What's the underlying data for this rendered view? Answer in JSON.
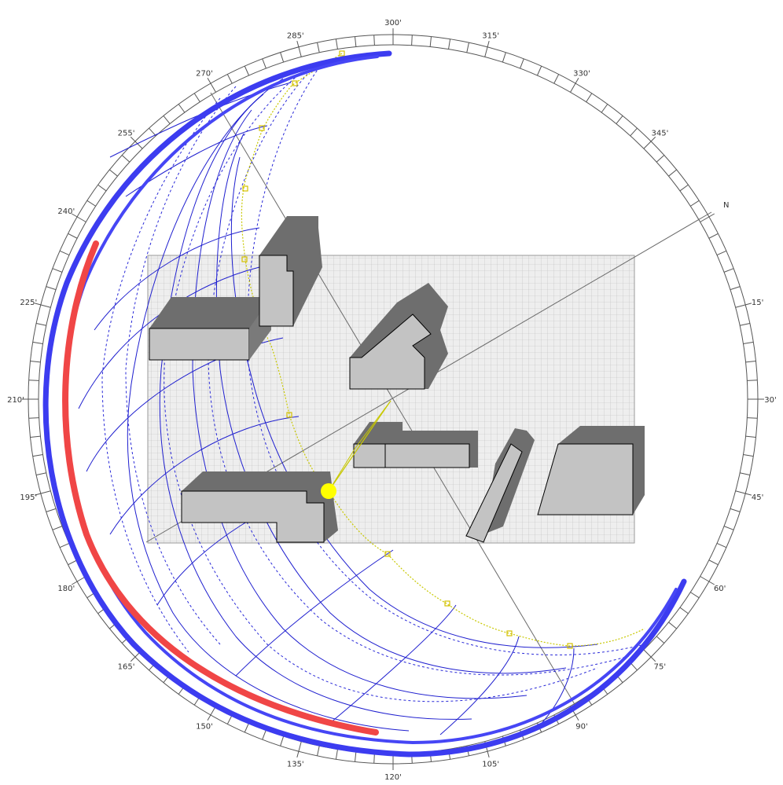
{
  "compass": {
    "north_label": "N",
    "degree_labels": [
      "15'",
      "30'",
      "45'",
      "60'",
      "75'",
      "90'",
      "105'",
      "120'",
      "135'",
      "150'",
      "165'",
      "180'",
      "195'",
      "210'",
      "225'",
      "240'",
      "255'",
      "270'",
      "285'",
      "300'",
      "315'",
      "330'",
      "345'"
    ]
  },
  "colors": {
    "background": "#ffffff",
    "ring": "#333333",
    "ground_grid": "#c8c8c8",
    "ground_fill": "#ebebeb",
    "building_face": "#c3c3c3",
    "building_shadow": "#6e6e6e",
    "sun": "#ffff00",
    "sun_path": "#c8c800",
    "sun_grid": "#1a1acc",
    "arc_blue": "#3c3cf0",
    "arc_red": "#f04646",
    "axis": "#606060"
  },
  "scene": {
    "buildings": [
      "building-1",
      "building-2",
      "building-3",
      "building-4",
      "building-5",
      "building-6",
      "building-7"
    ],
    "sun_icon": "sun-icon"
  }
}
